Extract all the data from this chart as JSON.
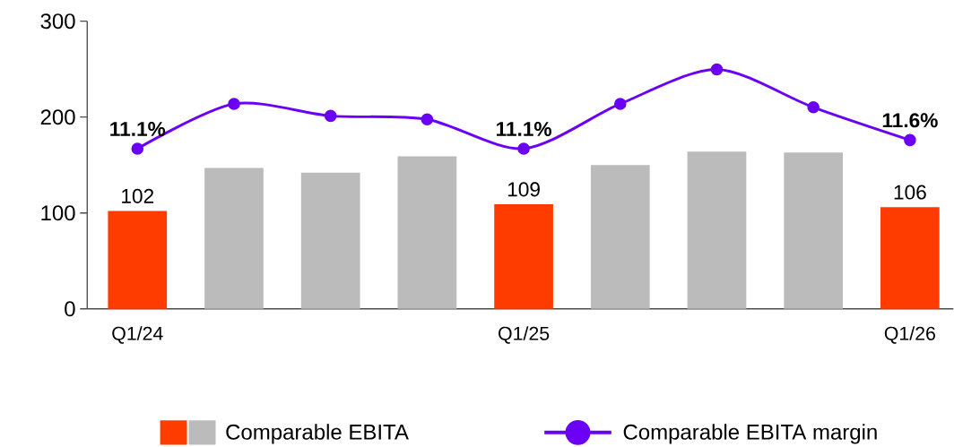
{
  "chart_data": {
    "type": "bar",
    "categories": [
      "Q1/24",
      null,
      null,
      null,
      "Q1/25",
      null,
      null,
      null,
      "Q1/26"
    ],
    "series": [
      {
        "name": "Comparable EBITA",
        "colors": [
          "#ff3c00",
          "#bbbbbb",
          "#bbbbbb",
          "#bbbbbb",
          "#ff3c00",
          "#bbbbbb",
          "#bbbbbb",
          "#bbbbbb",
          "#ff3c00"
        ],
        "values": [
          102,
          147,
          142,
          159,
          109,
          150,
          164,
          163,
          106
        ],
        "value_labels": [
          "102",
          null,
          null,
          null,
          "109",
          null,
          null,
          null,
          "106"
        ]
      },
      {
        "name": "Comparable EBITA margin",
        "type": "line",
        "axis": "y2",
        "color": "#6a00f4",
        "marker": "circle",
        "values": [
          11.1,
          13.7,
          13.0,
          12.8,
          11.1,
          13.7,
          15.7,
          13.5,
          11.6
        ],
        "value_labels": [
          "11.1%",
          null,
          null,
          null,
          "11.1%",
          null,
          null,
          null,
          "11.6%"
        ]
      }
    ],
    "ylim": [
      0,
      300
    ],
    "yticks": [
      0,
      100,
      200,
      300
    ],
    "y2lim": [
      1.8,
      18.5
    ],
    "grid": false,
    "legend": "bottom"
  }
}
